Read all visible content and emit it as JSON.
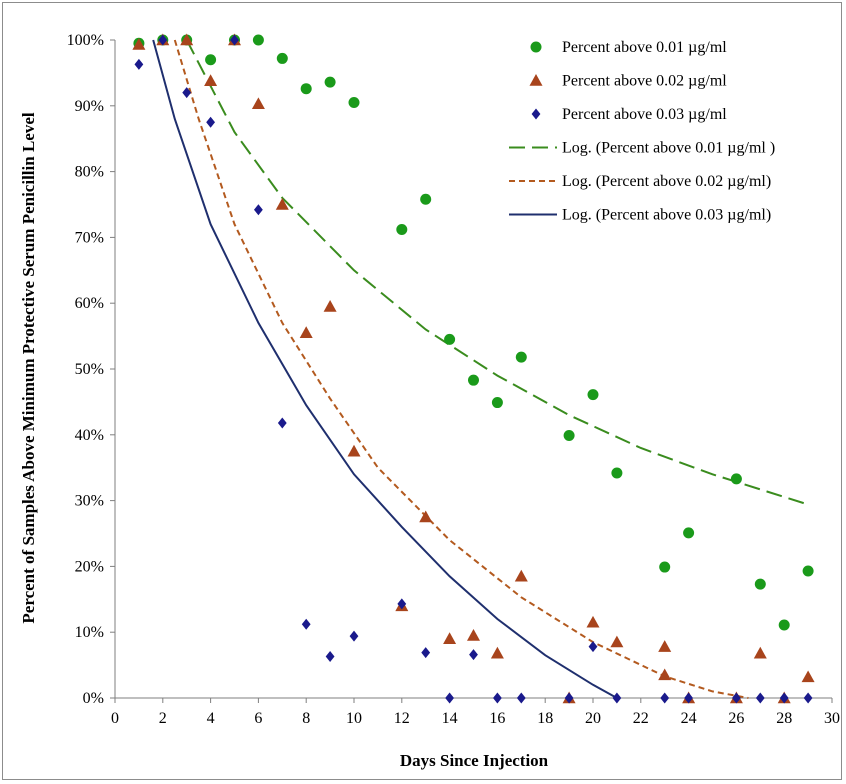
{
  "chart_data": {
    "type": "scatter",
    "xlabel": "Days Since Injection",
    "ylabel": "Percent of Samples Above Minimum  Protective Serum Penicillin Level",
    "xlim": [
      0,
      30
    ],
    "ylim": [
      0,
      100
    ],
    "x_ticks": [
      "0",
      "2",
      "4",
      "6",
      "8",
      "10",
      "12",
      "14",
      "16",
      "18",
      "20",
      "22",
      "24",
      "26",
      "28",
      "30"
    ],
    "y_ticks": [
      "0%",
      "10%",
      "20%",
      "30%",
      "40%",
      "50%",
      "60%",
      "70%",
      "80%",
      "90%",
      "100%"
    ],
    "legend_position": "top-right",
    "grid": false,
    "series": [
      {
        "name": "Percent above 0.01 µg/ml",
        "kind": "scatter",
        "marker": "circle",
        "color": "#1a9a1a",
        "points": [
          [
            1,
            99.5
          ],
          [
            2,
            100
          ],
          [
            3,
            100
          ],
          [
            4,
            97
          ],
          [
            5,
            100
          ],
          [
            6,
            100
          ],
          [
            7,
            97.2
          ],
          [
            8,
            92.6
          ],
          [
            9,
            93.6
          ],
          [
            10,
            90.5
          ],
          [
            12,
            71.2
          ],
          [
            13,
            75.8
          ],
          [
            14,
            54.5
          ],
          [
            15,
            48.3
          ],
          [
            16,
            44.9
          ],
          [
            17,
            51.8
          ],
          [
            19,
            39.9
          ],
          [
            20,
            46.1
          ],
          [
            21,
            34.2
          ],
          [
            23,
            19.9
          ],
          [
            24,
            25.1
          ],
          [
            26,
            33.3
          ],
          [
            27,
            17.3
          ],
          [
            28,
            11.1
          ],
          [
            29,
            19.3
          ]
        ]
      },
      {
        "name": "Percent above 0.02 µg/ml",
        "kind": "scatter",
        "marker": "triangle",
        "color": "#a8441c",
        "points": [
          [
            1,
            99.3
          ],
          [
            2,
            100
          ],
          [
            3,
            100
          ],
          [
            4,
            93.8
          ],
          [
            5,
            100
          ],
          [
            6,
            90.3
          ],
          [
            7,
            75
          ],
          [
            8,
            55.5
          ],
          [
            9,
            59.5
          ],
          [
            10,
            37.5
          ],
          [
            12,
            14
          ],
          [
            13,
            27.5
          ],
          [
            14,
            9
          ],
          [
            15,
            9.5
          ],
          [
            16,
            6.8
          ],
          [
            17,
            18.5
          ],
          [
            19,
            0
          ],
          [
            20,
            11.5
          ],
          [
            21,
            8.5
          ],
          [
            23,
            3.5
          ],
          [
            23,
            7.8
          ],
          [
            24,
            0
          ],
          [
            26,
            0
          ],
          [
            27,
            6.8
          ],
          [
            28,
            0
          ],
          [
            29,
            3.2
          ]
        ]
      },
      {
        "name": "Percent above 0.03 µg/ml",
        "kind": "scatter",
        "marker": "diamond",
        "color": "#1a1a8c",
        "points": [
          [
            1,
            96.3
          ],
          [
            2,
            100
          ],
          [
            3,
            92
          ],
          [
            4,
            87.5
          ],
          [
            5,
            100
          ],
          [
            6,
            74.2
          ],
          [
            7,
            41.8
          ],
          [
            8,
            11.2
          ],
          [
            9,
            6.3
          ],
          [
            10,
            9.4
          ],
          [
            12,
            14.3
          ],
          [
            13,
            6.9
          ],
          [
            14,
            0
          ],
          [
            15,
            6.6
          ],
          [
            16,
            0
          ],
          [
            17,
            0
          ],
          [
            19,
            0
          ],
          [
            20,
            7.8
          ],
          [
            21,
            0
          ],
          [
            23,
            0
          ],
          [
            24,
            0
          ],
          [
            26,
            0
          ],
          [
            27,
            0
          ],
          [
            28,
            0
          ],
          [
            29,
            0
          ]
        ]
      },
      {
        "name": "Log. (Percent above 0.01 µg/ml )",
        "kind": "line",
        "style": "long-dash",
        "color": "#3a8c1e",
        "points": [
          [
            3,
            100
          ],
          [
            5,
            86
          ],
          [
            7,
            76
          ],
          [
            10,
            65
          ],
          [
            13,
            56
          ],
          [
            16,
            49
          ],
          [
            19,
            43
          ],
          [
            22,
            38
          ],
          [
            25,
            34
          ],
          [
            29,
            29.4
          ]
        ]
      },
      {
        "name": "Log. (Percent above 0.02 µg/ml)",
        "kind": "line",
        "style": "short-dash",
        "color": "#b35a1f",
        "points": [
          [
            2.5,
            100
          ],
          [
            3.5,
            88
          ],
          [
            5,
            72
          ],
          [
            7,
            57
          ],
          [
            9,
            45.5
          ],
          [
            11,
            35
          ],
          [
            14,
            24
          ],
          [
            17,
            15.3
          ],
          [
            20,
            8.5
          ],
          [
            23,
            3.3
          ],
          [
            25,
            1
          ],
          [
            26.5,
            0
          ]
        ]
      },
      {
        "name": "Log. (Percent above 0.03 µg/ml)",
        "kind": "line",
        "style": "solid",
        "color": "#1f2f6e",
        "points": [
          [
            1.6,
            100
          ],
          [
            2.5,
            88
          ],
          [
            4,
            72
          ],
          [
            6,
            57
          ],
          [
            8,
            44.5
          ],
          [
            10,
            34
          ],
          [
            12,
            26
          ],
          [
            14,
            18.5
          ],
          [
            16,
            12
          ],
          [
            18,
            6.5
          ],
          [
            20,
            2
          ],
          [
            21,
            0
          ]
        ]
      }
    ]
  }
}
